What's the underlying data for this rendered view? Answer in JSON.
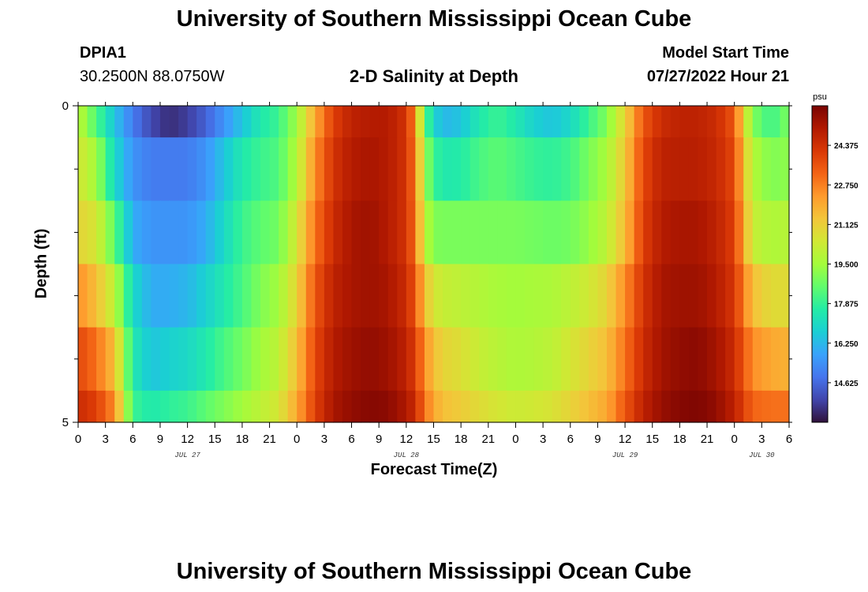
{
  "title": "University of Southern Mississippi Ocean Cube",
  "station": {
    "name": "DPIA1",
    "coordinates": "30.2500N  88.0750W"
  },
  "subtitle": "2-D Salinity at Depth",
  "model_start": {
    "label": "Model Start Time",
    "value": "07/27/2022 Hour 21"
  },
  "footer_title": "University of Southern Mississippi Ocean Cube",
  "colors": {
    "colormap": [
      "#30123b",
      "#4145ab",
      "#4675ed",
      "#39a2fc",
      "#1bcfd4",
      "#24eca6",
      "#61fc6c",
      "#a4fc3b",
      "#d1e834",
      "#f3c63a",
      "#fe9b2d",
      "#f36315",
      "#d93806",
      "#b11901",
      "#7a0402"
    ]
  },
  "chart_data": {
    "type": "heatmap",
    "title": "2-D Salinity at Depth",
    "xlabel": "Forecast Time(Z)",
    "ylabel": "Depth (ft)",
    "x_ticks": [
      "0",
      "3",
      "6",
      "9",
      "12",
      "15",
      "18",
      "21",
      "0",
      "3",
      "6",
      "9",
      "12",
      "15",
      "18",
      "21",
      "0",
      "3",
      "6",
      "9",
      "12",
      "15",
      "18",
      "21",
      "0",
      "3",
      "6"
    ],
    "x_step_hours": 3,
    "x_range_hours": [
      0,
      78
    ],
    "date_labels": [
      {
        "label": "JUL 27",
        "hour": 12
      },
      {
        "label": "JUL 28",
        "hour": 36
      },
      {
        "label": "JUL 29",
        "hour": 60
      },
      {
        "label": "JUL 30",
        "hour": 75
      }
    ],
    "y_ticks": [
      "0",
      "5"
    ],
    "y_range": [
      0,
      5
    ],
    "y_minor_tick_count": 4,
    "depth_layers": 5,
    "colorbar": {
      "unit": "psu",
      "min": 13.0,
      "max": 26.0,
      "tick_labels": [
        "24.375",
        "22.750",
        "21.125",
        "19.500",
        "17.875",
        "16.250",
        "14.625"
      ]
    },
    "key_times_hours": [
      0,
      2,
      4,
      6,
      8,
      10,
      12,
      14,
      16,
      18,
      20,
      22,
      24,
      26,
      28,
      30,
      32,
      34,
      36,
      37,
      38,
      39,
      40,
      42,
      44,
      46,
      48,
      50,
      52,
      54,
      56,
      58,
      60,
      62,
      64,
      66,
      68,
      70,
      72,
      73,
      74,
      76,
      78
    ],
    "salinity_psu": [
      [
        20.0,
        18.3,
        16.5,
        15.0,
        14.0,
        13.5,
        13.8,
        14.5,
        15.5,
        16.5,
        17.5,
        18.0,
        19.5,
        22.0,
        24.0,
        24.8,
        25.0,
        25.0,
        24.3,
        22.5,
        18.5,
        17.0,
        16.2,
        16.5,
        17.5,
        18.0,
        17.5,
        16.8,
        16.5,
        17.0,
        18.0,
        19.0,
        21.0,
        23.5,
        24.5,
        24.8,
        24.8,
        24.5,
        23.5,
        21.0,
        19.0,
        18.0,
        19.0
      ],
      [
        20.5,
        19.5,
        17.0,
        15.5,
        15.0,
        15.0,
        15.0,
        15.5,
        16.5,
        17.5,
        18.0,
        18.3,
        19.8,
        22.5,
        24.3,
        25.0,
        25.2,
        25.0,
        24.3,
        22.8,
        19.5,
        18.0,
        17.5,
        17.6,
        18.2,
        18.5,
        18.2,
        17.9,
        17.8,
        18.1,
        18.9,
        19.6,
        21.3,
        23.8,
        24.8,
        24.9,
        24.9,
        24.6,
        23.8,
        21.5,
        19.8,
        19.0,
        19.2
      ],
      [
        21.0,
        20.5,
        18.5,
        16.0,
        15.5,
        15.5,
        15.5,
        16.0,
        17.0,
        18.0,
        18.5,
        18.8,
        20.5,
        23.0,
        24.5,
        25.2,
        25.4,
        25.0,
        24.3,
        23.0,
        20.0,
        19.0,
        18.9,
        18.9,
        18.9,
        18.9,
        18.9,
        18.8,
        18.7,
        18.8,
        19.3,
        20.0,
        21.6,
        24.0,
        25.0,
        25.2,
        25.2,
        24.8,
        24.0,
        22.0,
        20.2,
        19.7,
        19.9
      ],
      [
        22.5,
        21.5,
        20.0,
        17.0,
        16.0,
        16.0,
        16.2,
        16.8,
        17.5,
        18.2,
        19.0,
        19.5,
        21.0,
        23.5,
        24.8,
        25.2,
        25.4,
        25.2,
        24.5,
        23.5,
        21.5,
        20.5,
        20.2,
        20.0,
        19.8,
        19.6,
        19.5,
        19.6,
        19.7,
        20.0,
        20.4,
        21.0,
        22.5,
        24.3,
        25.2,
        25.4,
        25.4,
        25.0,
        24.2,
        22.8,
        21.5,
        20.8,
        20.8
      ],
      [
        23.8,
        23.0,
        21.5,
        17.5,
        16.5,
        16.8,
        17.0,
        17.5,
        18.2,
        18.8,
        19.5,
        20.0,
        21.5,
        23.8,
        25.0,
        25.4,
        25.6,
        25.4,
        24.8,
        24.0,
        22.5,
        21.5,
        21.0,
        20.7,
        20.2,
        19.9,
        19.7,
        19.8,
        20.0,
        20.5,
        21.0,
        21.5,
        23.0,
        24.5,
        25.3,
        25.6,
        25.7,
        25.3,
        24.5,
        23.5,
        22.5,
        22.0,
        21.8
      ],
      [
        24.5,
        24.0,
        22.5,
        18.0,
        17.5,
        17.8,
        18.0,
        18.5,
        19.0,
        19.5,
        20.0,
        20.5,
        22.0,
        24.0,
        25.2,
        25.6,
        25.8,
        25.7,
        25.1,
        24.5,
        23.0,
        22.0,
        21.5,
        21.2,
        20.8,
        20.5,
        20.3,
        20.4,
        20.6,
        21.0,
        21.5,
        22.0,
        23.5,
        24.8,
        25.5,
        25.8,
        25.9,
        25.6,
        24.8,
        24.0,
        23.2,
        23.0,
        23.0
      ]
    ]
  }
}
